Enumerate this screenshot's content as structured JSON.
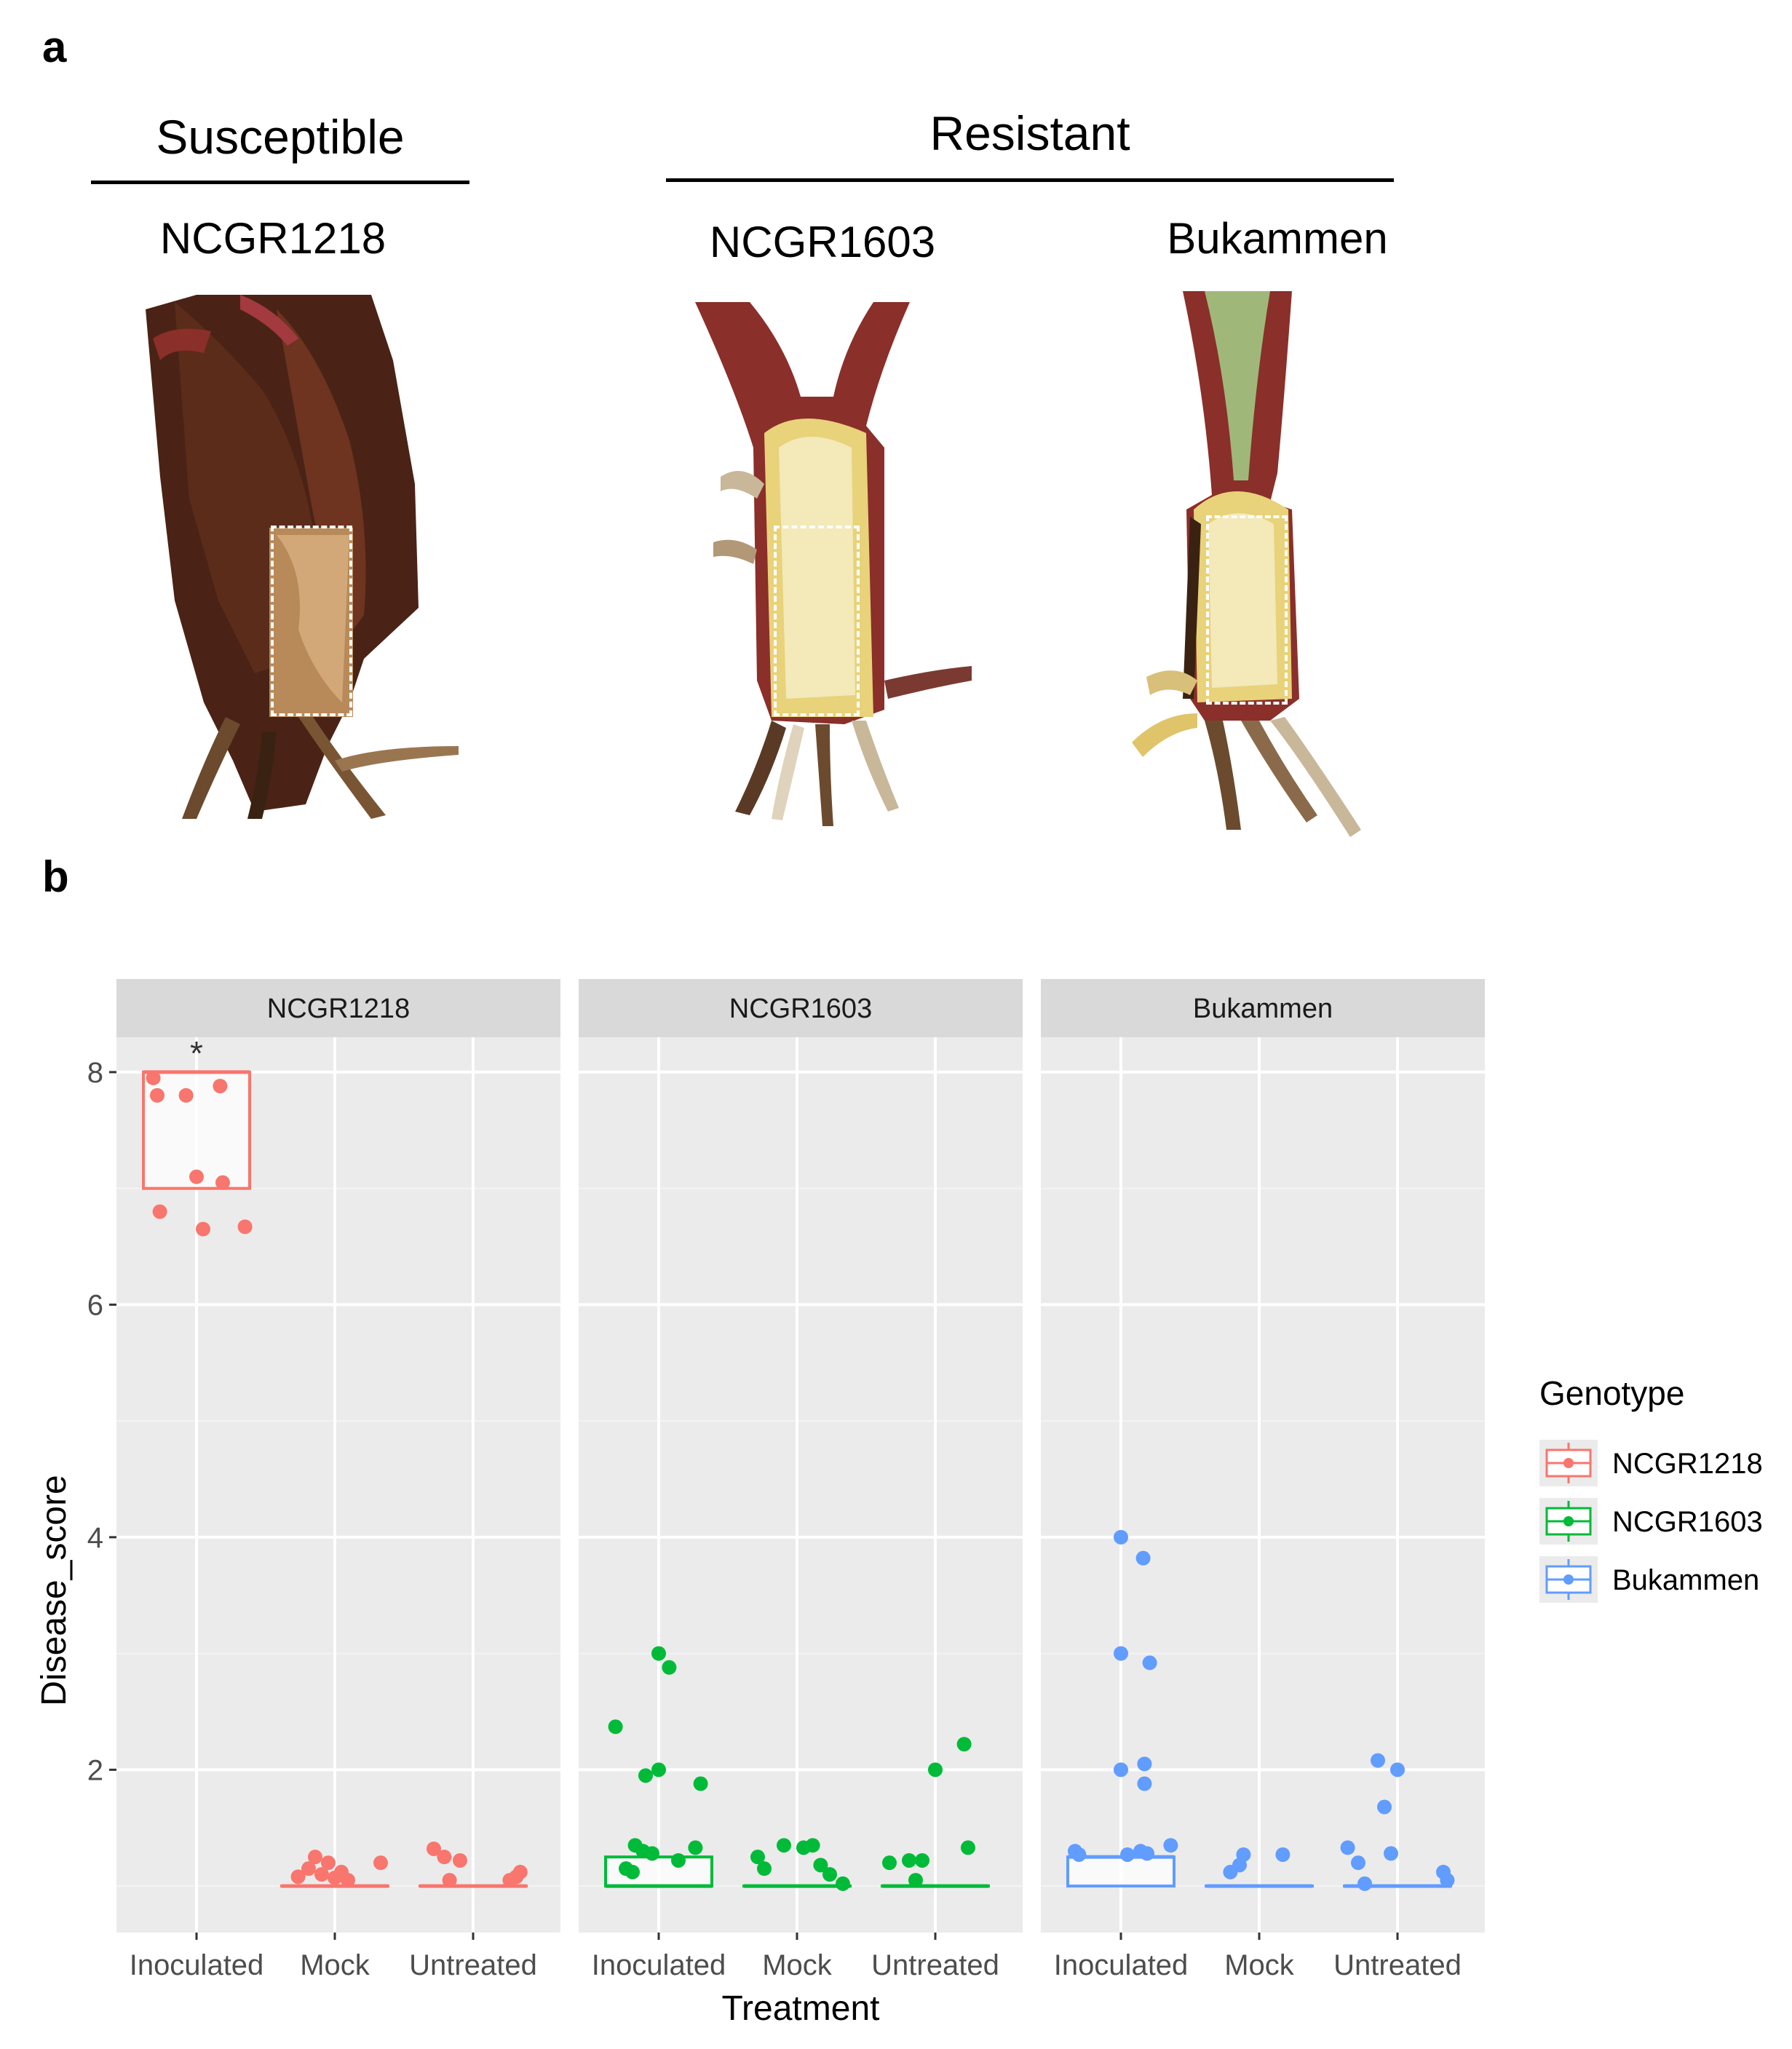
{
  "panels": {
    "a": "a",
    "b": "b"
  },
  "photo_panel": {
    "groups": [
      {
        "name": "Susceptible",
        "genotypes": [
          "NCGR1218"
        ]
      },
      {
        "name": "Resistant",
        "genotypes": [
          "NCGR1603",
          "Bukammen"
        ]
      }
    ],
    "genotype_labels": [
      "NCGR1218",
      "NCGR1603",
      "Bukammen"
    ],
    "colors": {
      "stem_dark": "#4a2316",
      "stem_red": "#8a2f2a",
      "cut_yellow": "#e8d27a",
      "cut_pale": "#f3e9b9",
      "root_brown": "#6b4a2e"
    }
  },
  "chart_data": {
    "type": "box+jitter",
    "xlabel": "Treatment",
    "ylabel": "Disease_score",
    "ylim": [
      0.6,
      8.3
    ],
    "yticks": [
      2,
      4,
      6,
      8
    ],
    "facets": [
      "NCGR1218",
      "NCGR1603",
      "Bukammen"
    ],
    "categories": [
      "Inoculated",
      "Mock",
      "Untreated"
    ],
    "legend": {
      "title": "Genotype",
      "placement": "right",
      "entries": [
        "NCGR1218",
        "NCGR1603",
        "Bukammen"
      ]
    },
    "colors": {
      "NCGR1218": "#f8766d",
      "NCGR1603": "#00ba38",
      "Bukammen": "#619cff",
      "panel_bg": "#ebebeb",
      "strip_bg": "#d9d9d9",
      "grid": "#ffffff"
    },
    "annotations": [
      {
        "facet": "NCGR1218",
        "category": "Inoculated",
        "text": "*"
      }
    ],
    "series": [
      {
        "name": "NCGR1218",
        "boxes": {
          "Inoculated": {
            "q1": 7.0,
            "median": 8.0,
            "q3": 8.0
          },
          "Mock": {
            "q1": 1.0,
            "median": 1.0,
            "q3": 1.0
          },
          "Untreated": {
            "q1": 1.0,
            "median": 1.0,
            "q3": 1.0
          }
        },
        "points": {
          "Inoculated": [
            [
              -0.3,
              7.8
            ],
            [
              -0.08,
              7.8
            ],
            [
              0.18,
              7.88
            ],
            [
              0.0,
              7.1
            ],
            [
              0.2,
              7.05
            ],
            [
              -0.28,
              6.8
            ],
            [
              0.05,
              6.65
            ],
            [
              0.37,
              6.67
            ],
            [
              -0.33,
              7.95
            ]
          ],
          "Mock": [
            [
              -0.28,
              1.08
            ],
            [
              -0.2,
              1.15
            ],
            [
              -0.15,
              1.25
            ],
            [
              -0.1,
              1.1
            ],
            [
              -0.05,
              1.2
            ],
            [
              0.0,
              1.07
            ],
            [
              0.05,
              1.12
            ],
            [
              0.1,
              1.05
            ],
            [
              0.35,
              1.2
            ]
          ],
          "Untreated": [
            [
              -0.3,
              1.32
            ],
            [
              -0.22,
              1.25
            ],
            [
              -0.18,
              1.05
            ],
            [
              -0.1,
              1.22
            ],
            [
              0.28,
              1.05
            ],
            [
              0.33,
              1.08
            ],
            [
              0.36,
              1.12
            ]
          ]
        }
      },
      {
        "name": "NCGR1603",
        "boxes": {
          "Inoculated": {
            "q1": 1.0,
            "median": 1.0,
            "q3": 1.25
          },
          "Mock": {
            "q1": 1.0,
            "median": 1.0,
            "q3": 1.0
          },
          "Untreated": {
            "q1": 1.0,
            "median": 1.0,
            "q3": 1.0
          }
        },
        "points": {
          "Inoculated": [
            [
              -0.33,
              2.37
            ],
            [
              -0.1,
              1.95
            ],
            [
              0.0,
              2.0
            ],
            [
              0.0,
              3.0
            ],
            [
              0.08,
              2.88
            ],
            [
              0.32,
              1.88
            ],
            [
              -0.2,
              1.12
            ],
            [
              -0.25,
              1.15
            ],
            [
              -0.18,
              1.35
            ],
            [
              -0.12,
              1.3
            ],
            [
              -0.05,
              1.28
            ],
            [
              0.15,
              1.22
            ],
            [
              0.28,
              1.33
            ]
          ],
          "Mock": [
            [
              -0.3,
              1.25
            ],
            [
              -0.25,
              1.15
            ],
            [
              -0.1,
              1.35
            ],
            [
              0.05,
              1.33
            ],
            [
              0.12,
              1.35
            ],
            [
              0.18,
              1.18
            ],
            [
              0.25,
              1.1
            ],
            [
              0.35,
              1.02
            ]
          ],
          "Untreated": [
            [
              -0.35,
              1.2
            ],
            [
              -0.2,
              1.22
            ],
            [
              -0.15,
              1.05
            ],
            [
              -0.1,
              1.22
            ],
            [
              0.0,
              2.0
            ],
            [
              0.22,
              2.22
            ],
            [
              0.25,
              1.33
            ]
          ]
        }
      },
      {
        "name": "Bukammen",
        "boxes": {
          "Inoculated": {
            "q1": 1.0,
            "median": 1.25,
            "q3": 1.25
          },
          "Mock": {
            "q1": 1.0,
            "median": 1.0,
            "q3": 1.0
          },
          "Untreated": {
            "q1": 1.0,
            "median": 1.0,
            "q3": 1.0
          }
        },
        "points": {
          "Inoculated": [
            [
              0.0,
              4.0
            ],
            [
              0.17,
              3.82
            ],
            [
              0.0,
              3.0
            ],
            [
              0.22,
              2.92
            ],
            [
              0.0,
              2.0
            ],
            [
              0.18,
              2.05
            ],
            [
              0.18,
              1.88
            ],
            [
              -0.35,
              1.3
            ],
            [
              -0.32,
              1.27
            ],
            [
              0.05,
              1.27
            ],
            [
              0.15,
              1.3
            ],
            [
              0.2,
              1.28
            ],
            [
              0.38,
              1.35
            ]
          ],
          "Mock": [
            [
              -0.22,
              1.12
            ],
            [
              -0.15,
              1.18
            ],
            [
              -0.12,
              1.27
            ],
            [
              0.18,
              1.27
            ]
          ],
          "Untreated": [
            [
              -0.38,
              1.33
            ],
            [
              -0.3,
              1.2
            ],
            [
              -0.25,
              1.02
            ],
            [
              -0.05,
              1.28
            ],
            [
              -0.1,
              1.68
            ],
            [
              -0.15,
              2.08
            ],
            [
              0.0,
              2.0
            ],
            [
              0.35,
              1.12
            ],
            [
              0.38,
              1.05
            ]
          ]
        }
      }
    ]
  }
}
